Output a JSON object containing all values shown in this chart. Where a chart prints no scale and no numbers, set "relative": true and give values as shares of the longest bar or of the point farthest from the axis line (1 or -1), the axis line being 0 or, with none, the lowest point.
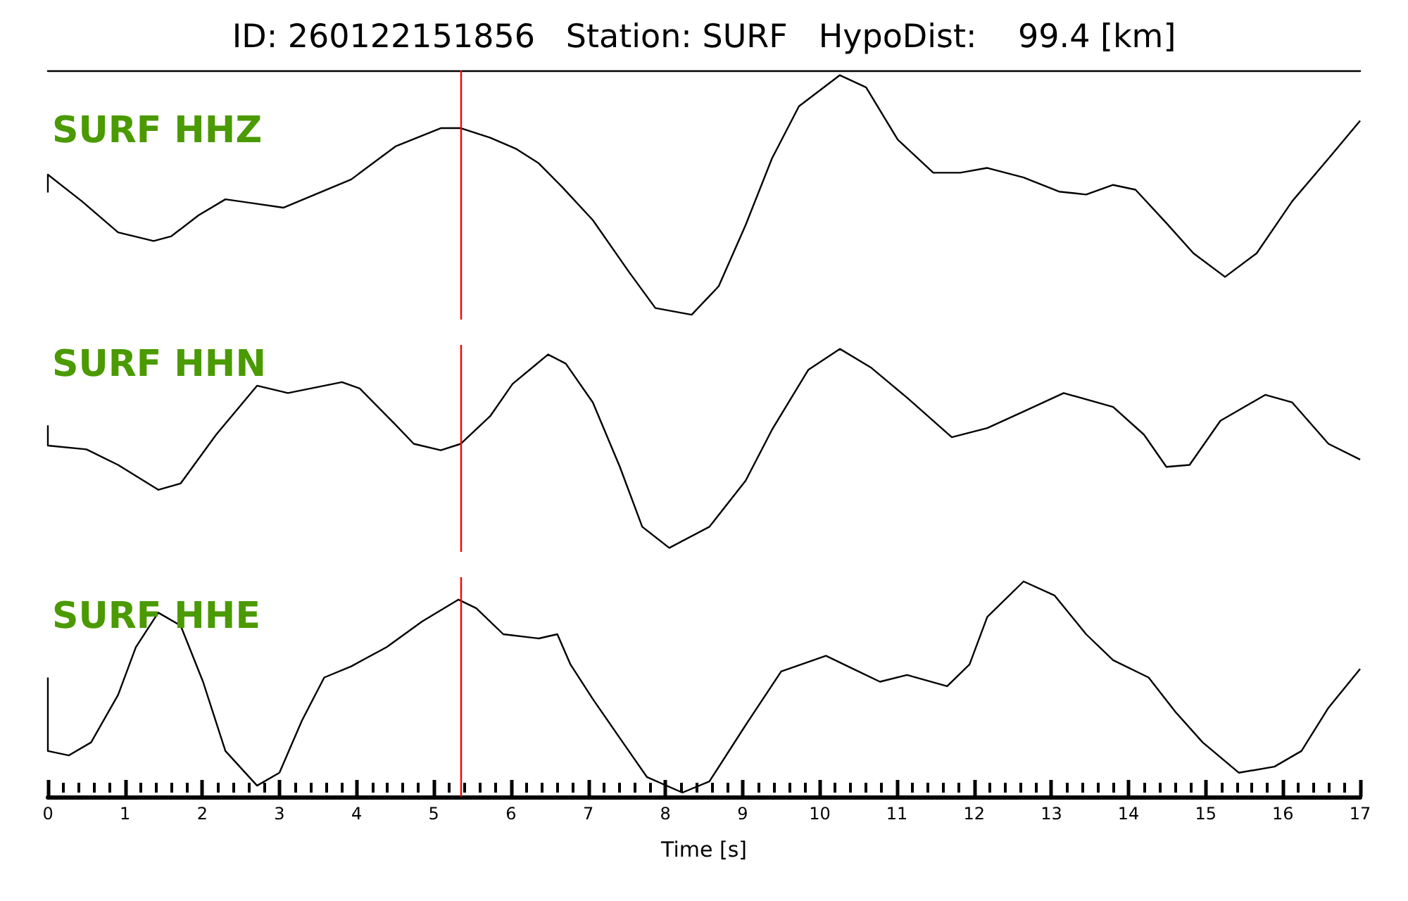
{
  "chart_data": [
    {
      "type": "line",
      "title": "ID: 260122151856   Station: SURF   HypoDist:    99.4 [km]",
      "annotations": [
        "SURF HHZ"
      ],
      "relative": true,
      "tick_labels": false,
      "xlim": [
        0,
        17
      ],
      "ref_lines": [
        {
          "axis": "x",
          "value": 5.35,
          "color": "#ff0000"
        }
      ],
      "series": [
        {
          "color": "#000000",
          "x": [
            0,
            0,
            0.44,
            0.91,
            1.37,
            1.6,
            1.95,
            2.3,
            2.65,
            3.05,
            3.46,
            3.93,
            4.51,
            5.09,
            5.35,
            5.73,
            6.07,
            6.36,
            6.66,
            7.06,
            7.53,
            7.87,
            8.34,
            8.69,
            9.04,
            9.38,
            9.73,
            10.26,
            10.6,
            11.01,
            11.47,
            11.82,
            12.17,
            12.64,
            13.1,
            13.45,
            13.8,
            14.09,
            14.49,
            14.84,
            15.25,
            15.66,
            16.12,
            16.59,
            17
          ],
          "values": [
            0.51,
            0.585,
            0.474,
            0.344,
            0.308,
            0.328,
            0.415,
            0.482,
            0.466,
            0.447,
            0.502,
            0.565,
            0.704,
            0.779,
            0.779,
            0.739,
            0.692,
            0.632,
            0.534,
            0.395,
            0.178,
            0.028,
            0,
            0.119,
            0.375,
            0.652,
            0.87,
            1,
            0.949,
            0.731,
            0.593,
            0.593,
            0.613,
            0.573,
            0.514,
            0.502,
            0.542,
            0.522,
            0.383,
            0.257,
            0.158,
            0.257,
            0.474,
            0.652,
            0.81
          ]
        }
      ]
    },
    {
      "type": "line",
      "annotations": [
        "SURF HHN"
      ],
      "relative": true,
      "tick_labels": false,
      "xlim": [
        0,
        17
      ],
      "ref_lines": [
        {
          "axis": "x",
          "value": 5.35,
          "color": "#ff0000"
        }
      ],
      "series": [
        {
          "color": "#000000",
          "x": [
            0,
            0,
            0.5,
            0.91,
            1.43,
            1.72,
            2.18,
            2.71,
            3.11,
            3.81,
            4.04,
            4.51,
            4.74,
            5.09,
            5.35,
            5.73,
            6.02,
            6.48,
            6.71,
            7.06,
            7.41,
            7.7,
            8.05,
            8.57,
            9.04,
            9.38,
            9.85,
            10.26,
            10.66,
            11.13,
            11.71,
            12.17,
            12.64,
            13.16,
            13.8,
            14.2,
            14.49,
            14.79,
            15.19,
            15.77,
            16.12,
            16.59,
            17
          ],
          "values": [
            0.616,
            0.514,
            0.495,
            0.417,
            0.292,
            0.324,
            0.569,
            0.815,
            0.778,
            0.833,
            0.801,
            0.616,
            0.523,
            0.491,
            0.523,
            0.662,
            0.824,
            0.972,
            0.926,
            0.731,
            0.407,
            0.106,
            0,
            0.106,
            0.338,
            0.593,
            0.894,
            1,
            0.907,
            0.755,
            0.556,
            0.602,
            0.685,
            0.778,
            0.708,
            0.569,
            0.407,
            0.417,
            0.639,
            0.769,
            0.731,
            0.523,
            0.444
          ]
        }
      ]
    },
    {
      "type": "line",
      "annotations": [
        "SURF HHE"
      ],
      "relative": true,
      "tick_labels": "x",
      "xlabel": "Time [s]",
      "xlim": [
        0,
        17
      ],
      "ref_lines": [
        {
          "axis": "x",
          "value": 5.35,
          "color": "#ff0000"
        }
      ],
      "xticks": [
        0,
        {
          "value": 0.2,
          "label": null
        },
        {
          "value": 0.4,
          "label": null
        },
        {
          "value": 0.6,
          "label": null
        },
        {
          "value": 0.8,
          "label": null
        },
        1,
        {
          "value": 1.2,
          "label": null
        },
        {
          "value": 1.4,
          "label": null
        },
        {
          "value": 1.6,
          "label": null
        },
        {
          "value": 1.8,
          "label": null
        },
        2,
        {
          "value": 2.2,
          "label": null
        },
        {
          "value": 2.4,
          "label": null
        },
        {
          "value": 2.6,
          "label": null
        },
        {
          "value": 2.8,
          "label": null
        },
        3,
        {
          "value": 3.2,
          "label": null
        },
        {
          "value": 3.4,
          "label": null
        },
        {
          "value": 3.6,
          "label": null
        },
        {
          "value": 3.8,
          "label": null
        },
        4,
        {
          "value": 4.2,
          "label": null
        },
        {
          "value": 4.4,
          "label": null
        },
        {
          "value": 4.6,
          "label": null
        },
        {
          "value": 4.8,
          "label": null
        },
        5,
        {
          "value": 5.2,
          "label": null
        },
        {
          "value": 5.4,
          "label": null
        },
        {
          "value": 5.6,
          "label": null
        },
        {
          "value": 5.8,
          "label": null
        },
        6,
        {
          "value": 6.2,
          "label": null
        },
        {
          "value": 6.4,
          "label": null
        },
        {
          "value": 6.6,
          "label": null
        },
        {
          "value": 6.8,
          "label": null
        },
        7,
        {
          "value": 7.2,
          "label": null
        },
        {
          "value": 7.4,
          "label": null
        },
        {
          "value": 7.6,
          "label": null
        },
        {
          "value": 7.8,
          "label": null
        },
        8,
        {
          "value": 8.2,
          "label": null
        },
        {
          "value": 8.4,
          "label": null
        },
        {
          "value": 8.6,
          "label": null
        },
        {
          "value": 8.8,
          "label": null
        },
        9,
        {
          "value": 9.2,
          "label": null
        },
        {
          "value": 9.4,
          "label": null
        },
        {
          "value": 9.6,
          "label": null
        },
        {
          "value": 9.8,
          "label": null
        },
        10,
        {
          "value": 10.2,
          "label": null
        },
        {
          "value": 10.4,
          "label": null
        },
        {
          "value": 10.6,
          "label": null
        },
        {
          "value": 10.8,
          "label": null
        },
        11,
        {
          "value": 11.2,
          "label": null
        },
        {
          "value": 11.4,
          "label": null
        },
        {
          "value": 11.6,
          "label": null
        },
        {
          "value": 11.8,
          "label": null
        },
        12,
        {
          "value": 12.2,
          "label": null
        },
        {
          "value": 12.4,
          "label": null
        },
        {
          "value": 12.6,
          "label": null
        },
        {
          "value": 12.8,
          "label": null
        },
        13,
        {
          "value": 13.2,
          "label": null
        },
        {
          "value": 13.4,
          "label": null
        },
        {
          "value": 13.6,
          "label": null
        },
        {
          "value": 13.8,
          "label": null
        },
        14,
        {
          "value": 14.2,
          "label": null
        },
        {
          "value": 14.4,
          "label": null
        },
        {
          "value": 14.6,
          "label": null
        },
        {
          "value": 14.8,
          "label": null
        },
        15,
        {
          "value": 15.2,
          "label": null
        },
        {
          "value": 15.4,
          "label": null
        },
        {
          "value": 15.6,
          "label": null
        },
        {
          "value": 15.8,
          "label": null
        },
        16,
        {
          "value": 16.2,
          "label": null
        },
        {
          "value": 16.4,
          "label": null
        },
        {
          "value": 16.6,
          "label": null
        },
        {
          "value": 16.8,
          "label": null
        },
        17
      ],
      "series": [
        {
          "color": "#000000",
          "x": [
            0,
            0,
            0.27,
            0.56,
            0.91,
            1.14,
            1.43,
            1.72,
            2.01,
            2.3,
            2.71,
            3,
            3.29,
            3.58,
            3.93,
            4.39,
            4.85,
            5.32,
            5.55,
            5.9,
            6.36,
            6.6,
            6.77,
            7.06,
            7.41,
            7.76,
            8.22,
            8.57,
            9.04,
            9.5,
            10.08,
            10.43,
            10.78,
            11.13,
            11.65,
            11.94,
            12.17,
            12.64,
            13.04,
            13.45,
            13.8,
            14.26,
            14.61,
            14.96,
            15.43,
            15.89,
            16.24,
            16.59,
            17
          ],
          "values": [
            0.545,
            0.197,
            0.176,
            0.238,
            0.463,
            0.689,
            0.852,
            0.791,
            0.525,
            0.197,
            0.033,
            0.094,
            0.34,
            0.545,
            0.598,
            0.689,
            0.811,
            0.914,
            0.873,
            0.75,
            0.73,
            0.75,
            0.607,
            0.443,
            0.258,
            0.074,
            0,
            0.053,
            0.32,
            0.574,
            0.648,
            0.586,
            0.525,
            0.557,
            0.504,
            0.607,
            0.832,
            1,
            0.934,
            0.75,
            0.627,
            0.545,
            0.381,
            0.238,
            0.094,
            0.123,
            0.197,
            0.402,
            0.586
          ]
        }
      ]
    }
  ]
}
